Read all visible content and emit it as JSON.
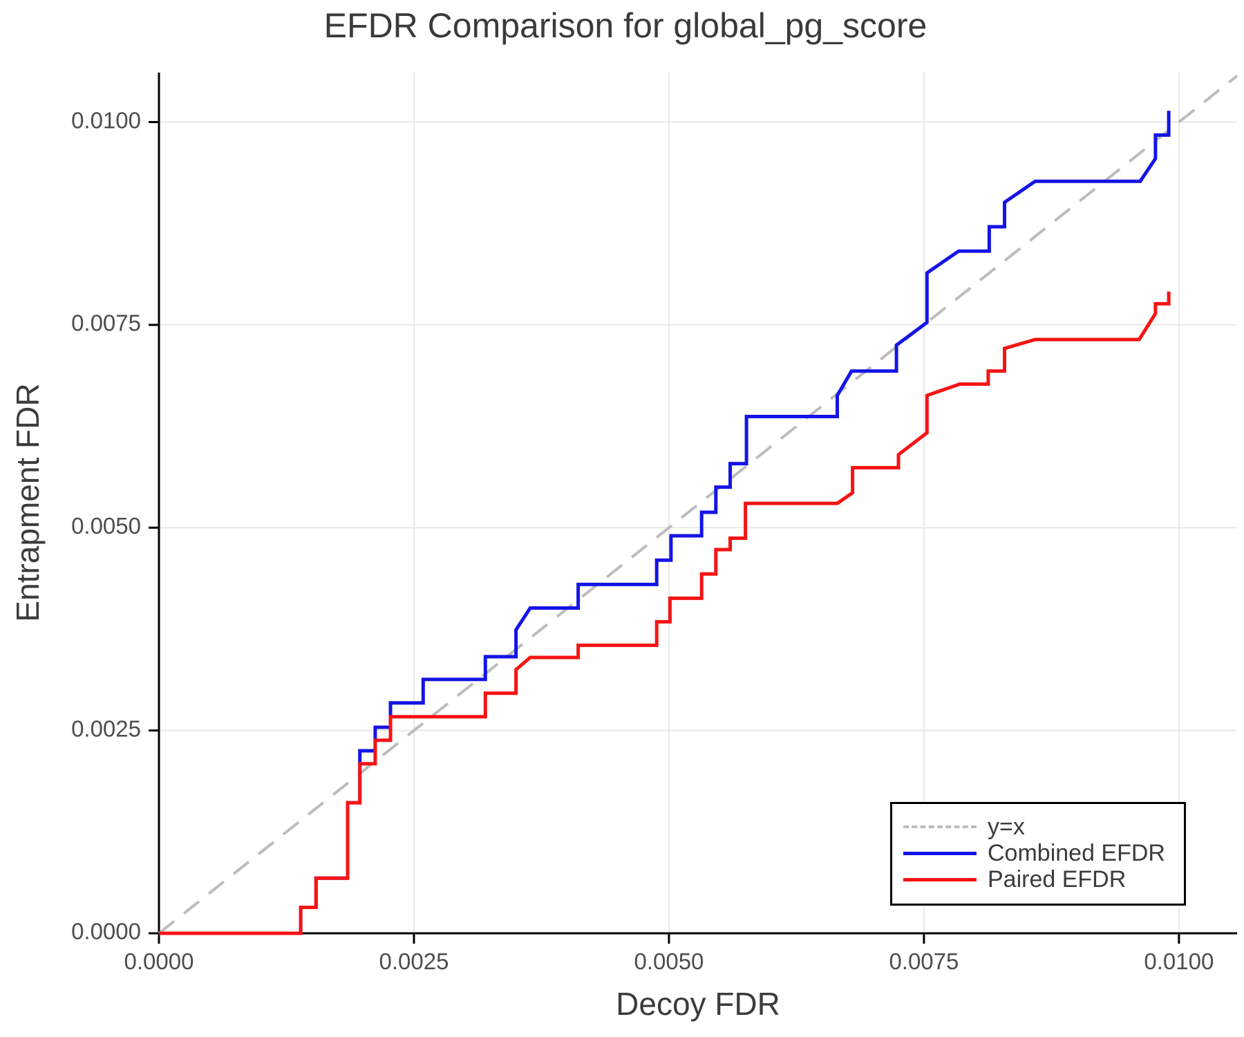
{
  "chart_data": {
    "type": "line",
    "subtype": "step",
    "title": "EFDR Comparison for global_pg_score",
    "xlabel": "Decoy FDR",
    "ylabel": "Entrapment FDR",
    "xlim": [
      0,
      0.01057
    ],
    "ylim": [
      0,
      0.01061
    ],
    "grid": true,
    "grid_color": "#e8e8e8",
    "axis_color": "#000000",
    "tick_label_color": "#4d4d4d",
    "x_ticks": {
      "values": [
        0,
        0.0025,
        0.005,
        0.0075,
        0.01
      ],
      "labels": [
        "0.0000",
        "0.0025",
        "0.0050",
        "0.0075",
        "0.0100"
      ]
    },
    "y_ticks": {
      "values": [
        0,
        0.0025,
        0.005,
        0.0075,
        0.01
      ],
      "labels": [
        "0.0000",
        "0.0025",
        "0.0050",
        "0.0075",
        "0.0100"
      ]
    },
    "reference_line": {
      "label": "y=x",
      "style": "dashed",
      "color": "#bcbcbc",
      "from": [
        0,
        0
      ],
      "to": [
        0.01057,
        0.01057
      ]
    },
    "legend": {
      "position": "bottom-right",
      "entries": [
        {
          "label": "y=x"
        },
        {
          "label": "Combined EFDR"
        },
        {
          "label": "Paired EFDR"
        }
      ]
    },
    "series": [
      {
        "name": "Combined EFDR",
        "color": "#1414e6",
        "points": [
          [
            0.0,
            0.0
          ],
          [
            0.00139,
            0.0
          ],
          [
            0.00139,
            0.00032
          ],
          [
            0.00154,
            0.00032
          ],
          [
            0.00154,
            0.00068
          ],
          [
            0.00185,
            0.00068
          ],
          [
            0.00185,
            0.00161
          ],
          [
            0.00197,
            0.00161
          ],
          [
            0.00197,
            0.00225
          ],
          [
            0.00212,
            0.00225
          ],
          [
            0.00212,
            0.00254
          ],
          [
            0.00227,
            0.00254
          ],
          [
            0.00227,
            0.00284
          ],
          [
            0.00259,
            0.00284
          ],
          [
            0.00259,
            0.00313
          ],
          [
            0.0032,
            0.00313
          ],
          [
            0.0032,
            0.00341
          ],
          [
            0.0035,
            0.00341
          ],
          [
            0.0035,
            0.00374
          ],
          [
            0.00364,
            0.00401
          ],
          [
            0.00411,
            0.00401
          ],
          [
            0.00411,
            0.0043
          ],
          [
            0.00488,
            0.0043
          ],
          [
            0.00488,
            0.0046
          ],
          [
            0.00502,
            0.0046
          ],
          [
            0.00502,
            0.0049
          ],
          [
            0.00532,
            0.0049
          ],
          [
            0.00532,
            0.00519
          ],
          [
            0.00546,
            0.00519
          ],
          [
            0.00546,
            0.0055
          ],
          [
            0.0056,
            0.0055
          ],
          [
            0.0056,
            0.00579
          ],
          [
            0.00576,
            0.00579
          ],
          [
            0.00576,
            0.00637
          ],
          [
            0.00665,
            0.00637
          ],
          [
            0.00665,
            0.00663
          ],
          [
            0.00679,
            0.00693
          ],
          [
            0.00723,
            0.00693
          ],
          [
            0.00723,
            0.00725
          ],
          [
            0.00753,
            0.00753
          ],
          [
            0.00753,
            0.00814
          ],
          [
            0.00784,
            0.00841
          ],
          [
            0.00814,
            0.00841
          ],
          [
            0.00814,
            0.00871
          ],
          [
            0.00829,
            0.00871
          ],
          [
            0.00829,
            0.00901
          ],
          [
            0.00859,
            0.00927
          ],
          [
            0.00962,
            0.00927
          ],
          [
            0.00977,
            0.00955
          ],
          [
            0.00977,
            0.00984
          ],
          [
            0.0099,
            0.00984
          ],
          [
            0.0099,
            0.01014
          ]
        ]
      },
      {
        "name": "Paired EFDR",
        "color": "#f51414",
        "points": [
          [
            0.0,
            0.0
          ],
          [
            0.00139,
            0.0
          ],
          [
            0.00139,
            0.00032
          ],
          [
            0.00154,
            0.00032
          ],
          [
            0.00154,
            0.00068
          ],
          [
            0.00185,
            0.00068
          ],
          [
            0.00185,
            0.00161
          ],
          [
            0.00197,
            0.00161
          ],
          [
            0.00197,
            0.00209
          ],
          [
            0.00212,
            0.00209
          ],
          [
            0.00212,
            0.00238
          ],
          [
            0.00227,
            0.00238
          ],
          [
            0.00227,
            0.00267
          ],
          [
            0.0032,
            0.00267
          ],
          [
            0.0032,
            0.00296
          ],
          [
            0.0035,
            0.00296
          ],
          [
            0.0035,
            0.00325
          ],
          [
            0.00364,
            0.0034
          ],
          [
            0.00411,
            0.0034
          ],
          [
            0.00411,
            0.00355
          ],
          [
            0.00488,
            0.00355
          ],
          [
            0.00488,
            0.00384
          ],
          [
            0.00501,
            0.00384
          ],
          [
            0.00501,
            0.00413
          ],
          [
            0.00532,
            0.00413
          ],
          [
            0.00532,
            0.00443
          ],
          [
            0.00546,
            0.00443
          ],
          [
            0.00546,
            0.00473
          ],
          [
            0.0056,
            0.00473
          ],
          [
            0.0056,
            0.00487
          ],
          [
            0.00575,
            0.00487
          ],
          [
            0.00575,
            0.0053
          ],
          [
            0.00665,
            0.0053
          ],
          [
            0.0068,
            0.00543
          ],
          [
            0.0068,
            0.00574
          ],
          [
            0.00725,
            0.00574
          ],
          [
            0.00725,
            0.0059
          ],
          [
            0.00753,
            0.00617
          ],
          [
            0.00753,
            0.00663
          ],
          [
            0.00785,
            0.00677
          ],
          [
            0.00813,
            0.00677
          ],
          [
            0.00813,
            0.00693
          ],
          [
            0.00829,
            0.00693
          ],
          [
            0.00829,
            0.00721
          ],
          [
            0.00859,
            0.00732
          ],
          [
            0.00961,
            0.00732
          ],
          [
            0.00977,
            0.00764
          ],
          [
            0.00977,
            0.00776
          ],
          [
            0.0099,
            0.00776
          ],
          [
            0.0099,
            0.00791
          ]
        ]
      }
    ]
  }
}
